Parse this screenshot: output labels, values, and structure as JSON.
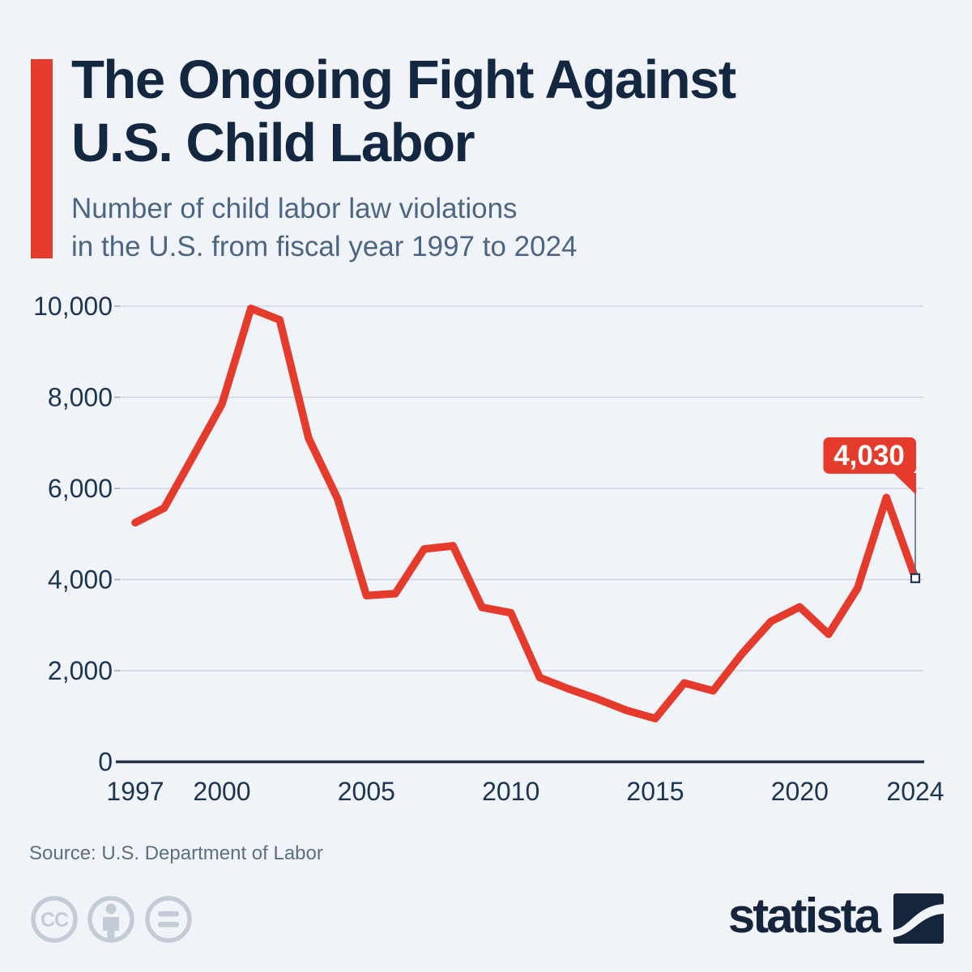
{
  "header": {
    "title_line1": "The Ongoing Fight Against",
    "title_line2": "U.S. Child Labor",
    "subtitle_line1": "Number of child labor law violations",
    "subtitle_line2": "in the U.S. from fiscal year 1997 to 2024"
  },
  "chart_data": {
    "type": "line",
    "title": "Number of child labor law violations in the U.S. from fiscal year 1997 to 2024",
    "series_name": "Child labor law violations",
    "x": [
      1997,
      1998,
      1999,
      2000,
      2001,
      2002,
      2003,
      2004,
      2005,
      2006,
      2007,
      2008,
      2009,
      2010,
      2011,
      2012,
      2013,
      2014,
      2015,
      2016,
      2017,
      2018,
      2019,
      2020,
      2021,
      2022,
      2023,
      2024
    ],
    "values": [
      5250,
      5570,
      6700,
      7850,
      9950,
      9700,
      7100,
      5780,
      3650,
      3690,
      4670,
      4740,
      3390,
      3270,
      1850,
      1600,
      1380,
      1130,
      950,
      1730,
      1560,
      2370,
      3080,
      3400,
      2800,
      3810,
      5800,
      4030
    ],
    "xlabel": "",
    "ylabel": "",
    "ylim": [
      0,
      10000
    ],
    "y_ticks": [
      0,
      2000,
      4000,
      6000,
      8000,
      10000
    ],
    "x_ticks": [
      1997,
      2000,
      2005,
      2010,
      2015,
      2020,
      2024
    ],
    "x_tick_labels": [
      "1997",
      "2000",
      "2005",
      "2010",
      "2015",
      "2020",
      "2024"
    ],
    "grid": true,
    "legend_position": "none",
    "annotation": {
      "year": 2024,
      "value": 4030,
      "label": "4,030"
    },
    "line_color": "#e53b2c"
  },
  "footer": {
    "source": "Source: U.S. Department of Labor",
    "license_icons": [
      "creative-commons",
      "attribution",
      "no-derivatives"
    ],
    "brand": "statista"
  },
  "colors": {
    "background": "#f0f4f8",
    "accent_red": "#e53b2c",
    "title_navy": "#132741",
    "subtitle_gray_blue": "#4c6583",
    "axis_label": "#1d3450",
    "gridline": "#ccd5df",
    "tick": "#9fadba",
    "axis_line": "#223349",
    "connector": "#5a6a7d",
    "marker_border": "#22364d",
    "annotation_text": "#ffffff",
    "license_icon_gray": "#c3ccd6",
    "logo_navy": "#15263c"
  }
}
